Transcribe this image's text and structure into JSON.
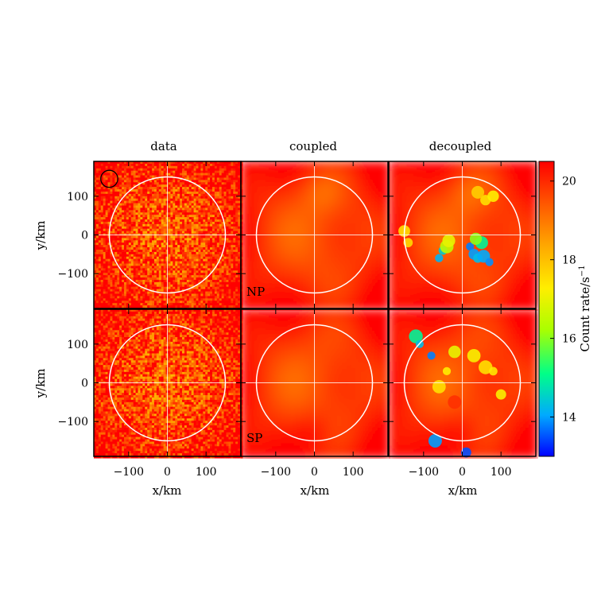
{
  "chart_data": {
    "type": "heatmap",
    "layout": "2x3 panel grid",
    "columns": [
      "data",
      "coupled",
      "decoupled"
    ],
    "rows": [
      {
        "label": "NP",
        "ylabel": "y/km"
      },
      {
        "label": "SP",
        "ylabel": "y/km"
      }
    ],
    "xlabel": "x/km",
    "ylabel": "y/km",
    "xlim": [
      -190,
      190
    ],
    "ylim": [
      -190,
      190
    ],
    "xticks": [
      -100,
      0,
      100
    ],
    "yticks": [
      100,
      0,
      -100
    ],
    "xtick_labels": [
      "−100",
      "0",
      "100"
    ],
    "ytick_labels": [
      "100",
      "0",
      "−100"
    ],
    "circle_radius_km": 150,
    "beam_circle": {
      "x_km": -150,
      "y_km": 145,
      "radius_km": 22,
      "panel": "data/NP"
    },
    "colorbar": {
      "label": "Count rate/s",
      "label_exponent": "−1",
      "min": 13.0,
      "max": 20.5,
      "ticks": [
        14,
        16,
        18,
        20
      ],
      "tick_labels": [
        "14",
        "16",
        "18",
        "20"
      ],
      "colormap": [
        "#0000ff",
        "#00aaff",
        "#00ff88",
        "#aaff00",
        "#ffee00",
        "#ffaa00",
        "#ff5500",
        "#ff0000"
      ]
    }
  }
}
